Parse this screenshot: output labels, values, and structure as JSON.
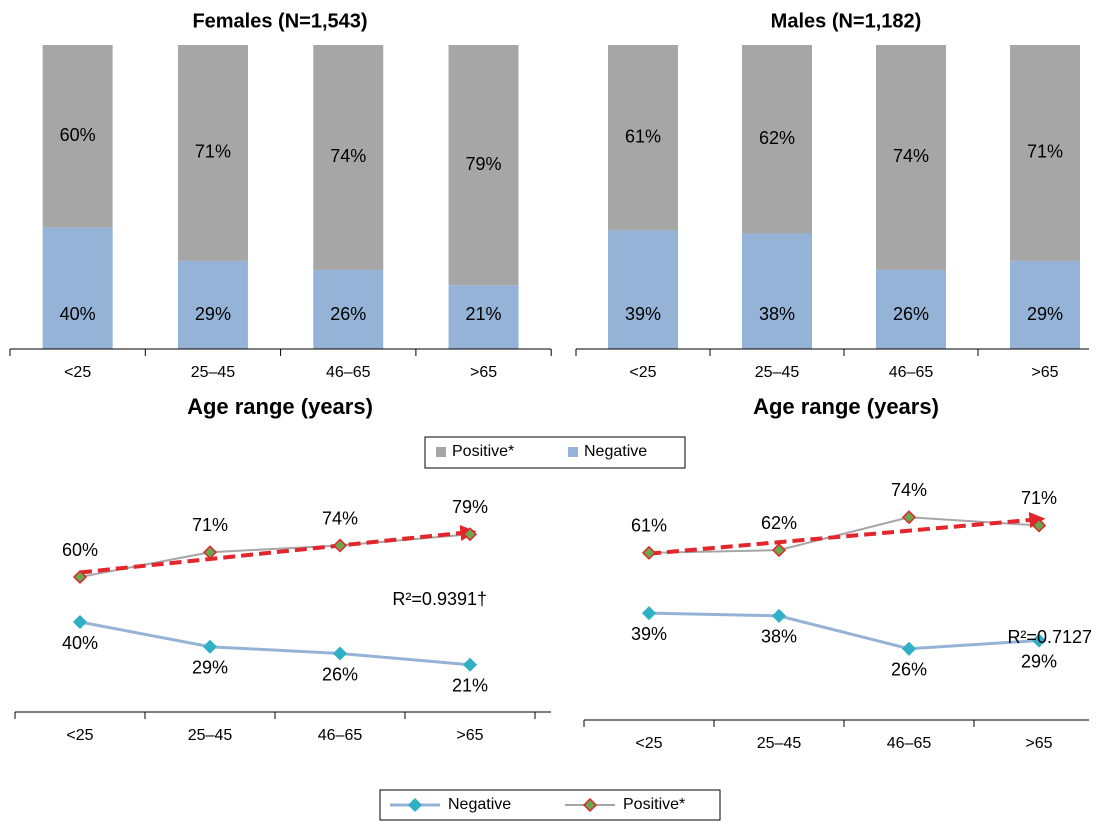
{
  "chart_data": [
    {
      "type": "bar",
      "stacked": true,
      "title": "Females (N=1,543)",
      "xlabel": "Age range (years)",
      "categories": [
        "<25",
        "25–45",
        "46–65",
        ">65"
      ],
      "ylim": [
        0,
        100
      ],
      "legend": "bottom",
      "series": [
        {
          "name": "Positive*",
          "color": "#a6a6a6",
          "values": [
            60,
            71,
            74,
            79
          ],
          "value_labels": [
            "60%",
            "71%",
            "74%",
            "79%"
          ]
        },
        {
          "name": "Negative",
          "color": "#95b3d7",
          "values": [
            40,
            29,
            26,
            21
          ],
          "value_labels": [
            "40%",
            "29%",
            "26%",
            "21%"
          ]
        }
      ]
    },
    {
      "type": "bar",
      "stacked": true,
      "title": "Males (N=1,182)",
      "xlabel": "Age range (years)",
      "categories": [
        "<25",
        "25–45",
        "46–65",
        ">65"
      ],
      "ylim": [
        0,
        100
      ],
      "series": [
        {
          "color": "#a6a6a6",
          "values": [
            61,
            62,
            74,
            71
          ],
          "value_labels": [
            "61%",
            "62%",
            "74%",
            "71%"
          ]
        },
        {
          "color": "#95b3d7",
          "values": [
            39,
            38,
            26,
            29
          ],
          "value_labels": [
            "39%",
            "38%",
            "26%",
            "29%"
          ]
        }
      ]
    },
    {
      "type": "line",
      "categories": [
        "<25",
        "25–45",
        "46–65",
        ">65"
      ],
      "ylim": [
        0,
        100
      ],
      "legend": "bottom",
      "annotation": "R²=0.9391†",
      "trend_line": true,
      "trend_color": "#e3262b",
      "series": [
        {
          "name": "Negative",
          "color": "#95b3d7",
          "marker_color": "#2fb0c6",
          "values": [
            40,
            29,
            26,
            21
          ],
          "value_labels": [
            "40%",
            "29%",
            "26%",
            "21%"
          ]
        },
        {
          "name": "Positive*",
          "color": "#a6a6a6",
          "marker_color": "#6aa84f",
          "marker_edge": "#e0252a",
          "values": [
            60,
            71,
            74,
            79
          ],
          "value_labels": [
            "60%",
            "71%",
            "74%",
            "79%"
          ]
        }
      ]
    },
    {
      "type": "line",
      "categories": [
        "<25",
        "25–45",
        "46–65",
        ">65"
      ],
      "ylim": [
        0,
        100
      ],
      "annotation": "R²=0.7127",
      "trend_line": true,
      "trend_color": "#e3262b",
      "series": [
        {
          "color": "#95b3d7",
          "marker_color": "#2fb0c6",
          "values": [
            39,
            38,
            26,
            29
          ],
          "value_labels": [
            "39%",
            "38%",
            "26%",
            "29%"
          ]
        },
        {
          "color": "#a6a6a6",
          "marker_color": "#6aa84f",
          "marker_edge": "#e0252a",
          "values": [
            61,
            62,
            74,
            71
          ],
          "value_labels": [
            "61%",
            "62%",
            "74%",
            "71%"
          ]
        }
      ]
    }
  ]
}
